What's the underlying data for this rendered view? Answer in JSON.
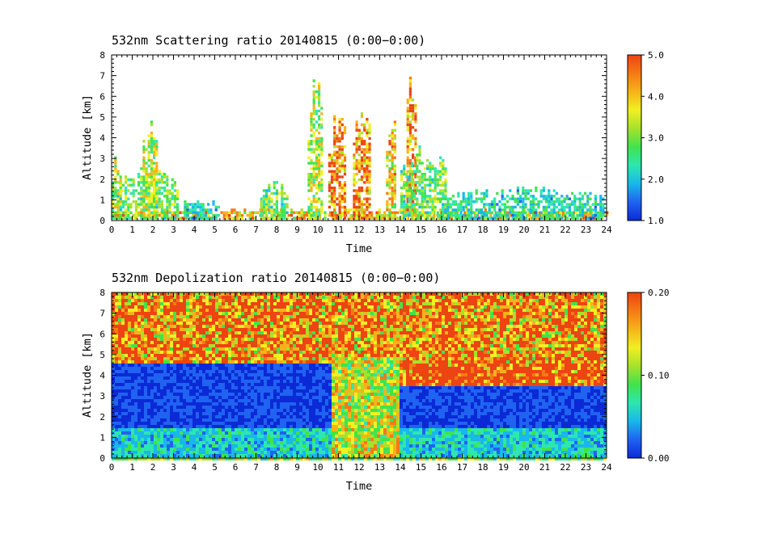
{
  "colors": {
    "colormap": [
      "#0b2ad6",
      "#1f63f0",
      "#19b7ea",
      "#2ee6b0",
      "#41e34b",
      "#a6e22c",
      "#f2ef22",
      "#f7b21a",
      "#f57a14",
      "#ec4412"
    ]
  },
  "chart_data": [
    {
      "type": "heatmap",
      "title": "532nm Scattering ratio  20140815 (0:00−0:00)",
      "xlabel": "Time",
      "ylabel": "Altitude [km]",
      "x_ticks": [
        "0",
        "1",
        "2",
        "3",
        "4",
        "5",
        "6",
        "7",
        "8",
        "9",
        "10",
        "11",
        "12",
        "13",
        "14",
        "15",
        "16",
        "17",
        "18",
        "19",
        "20",
        "21",
        "22",
        "23",
        "24"
      ],
      "y_ticks": [
        "0",
        "1",
        "2",
        "3",
        "4",
        "5",
        "6",
        "7",
        "8"
      ],
      "xlim": [
        0,
        24
      ],
      "ylim": [
        0,
        8
      ],
      "colorbar": {
        "range": [
          1.0,
          5.0
        ],
        "ticks": [
          "1.0",
          "2.0",
          "3.0",
          "4.0",
          "5.0"
        ]
      },
      "features": [
        {
          "t": [
            0.0,
            24.0
          ],
          "alt_top": 0.35,
          "value": 4.0
        },
        {
          "t": [
            0.0,
            3.2
          ],
          "alt_top": 2.2,
          "value": 3.0
        },
        {
          "t": [
            0.0,
            0.4
          ],
          "alt_top": 3.0,
          "value": 3.5
        },
        {
          "t": [
            1.5,
            2.2
          ],
          "alt_top": 4.8,
          "value": 3.5
        },
        {
          "t": [
            3.5,
            5.2
          ],
          "alt_top": 0.9,
          "value": 2.5
        },
        {
          "t": [
            7.2,
            8.5
          ],
          "alt_top": 1.6,
          "value": 3.0
        },
        {
          "t": [
            9.5,
            10.2
          ],
          "alt_top": 6.3,
          "value": 3.5
        },
        {
          "t": [
            10.5,
            11.3
          ],
          "alt_top": 5.2,
          "value": 4.5
        },
        {
          "t": [
            11.7,
            12.5
          ],
          "alt_top": 5.6,
          "value": 4.5
        },
        {
          "t": [
            13.3,
            13.8
          ],
          "alt_top": 5.0,
          "value": 4.0
        },
        {
          "t": [
            14.3,
            14.7
          ],
          "alt_top": 7.0,
          "value": 4.5
        },
        {
          "t": [
            14.0,
            16.2
          ],
          "alt_top": 3.0,
          "value": 3.0
        },
        {
          "t": [
            16.0,
            23.9
          ],
          "alt_top": 1.3,
          "value": 2.5
        }
      ]
    },
    {
      "type": "heatmap",
      "title": "532nm Depolization ratio  20140815 (0:00−0:00)",
      "xlabel": "Time",
      "ylabel": "Altitude [km]",
      "x_ticks": [
        "0",
        "1",
        "2",
        "3",
        "4",
        "5",
        "6",
        "7",
        "8",
        "9",
        "10",
        "11",
        "12",
        "13",
        "14",
        "15",
        "16",
        "17",
        "18",
        "19",
        "20",
        "21",
        "22",
        "23",
        "24"
      ],
      "y_ticks": [
        "0",
        "1",
        "2",
        "3",
        "4",
        "5",
        "6",
        "7",
        "8"
      ],
      "xlim": [
        0,
        24
      ],
      "ylim": [
        0,
        8
      ],
      "colorbar": {
        "range": [
          0.0,
          0.2
        ],
        "ticks": [
          "0.00",
          "0.10",
          "0.20"
        ]
      },
      "features": [
        {
          "t": [
            0.0,
            24.0
          ],
          "alt": [
            4.5,
            8.0
          ],
          "value": 0.2
        },
        {
          "t": [
            0.0,
            24.0
          ],
          "alt": [
            1.5,
            4.5
          ],
          "value": 0.02
        },
        {
          "t": [
            0.0,
            24.0
          ],
          "alt": [
            0.0,
            1.5
          ],
          "value": 0.06
        },
        {
          "t": [
            10.6,
            14.0
          ],
          "alt": [
            0.0,
            4.8
          ],
          "value": 0.12
        },
        {
          "t": [
            14.0,
            24.0
          ],
          "alt": [
            3.5,
            8.0
          ],
          "value": 0.2
        }
      ]
    }
  ]
}
